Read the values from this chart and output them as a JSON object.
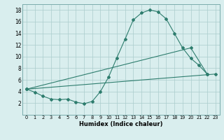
{
  "line1_x": [
    0,
    1,
    2,
    3,
    4,
    5,
    6,
    7,
    8,
    9,
    10,
    11,
    12,
    13,
    14,
    15,
    16,
    17,
    18,
    19,
    20,
    21,
    22
  ],
  "line1_y": [
    4.4,
    3.9,
    3.2,
    2.7,
    2.6,
    2.7,
    2.2,
    1.9,
    2.3,
    4.0,
    6.5,
    9.8,
    13.0,
    16.3,
    17.5,
    18.0,
    17.7,
    16.5,
    14.0,
    11.5,
    9.7,
    8.5,
    7.0
  ],
  "line2_x": [
    0,
    23
  ],
  "line2_y": [
    4.4,
    7.0
  ],
  "line3_x": [
    0,
    20,
    22
  ],
  "line3_y": [
    4.4,
    11.5,
    7.0
  ],
  "line_color": "#2e7d6e",
  "bg_color": "#d9eeee",
  "grid_color": "#aacccc",
  "xlabel": "Humidex (Indice chaleur)",
  "xlim": [
    -0.5,
    23.5
  ],
  "ylim": [
    0,
    19
  ],
  "xticks": [
    0,
    1,
    2,
    3,
    4,
    5,
    6,
    7,
    8,
    9,
    10,
    11,
    12,
    13,
    14,
    15,
    16,
    17,
    18,
    19,
    20,
    21,
    22,
    23
  ],
  "yticks": [
    2,
    4,
    6,
    8,
    10,
    12,
    14,
    16,
    18
  ]
}
